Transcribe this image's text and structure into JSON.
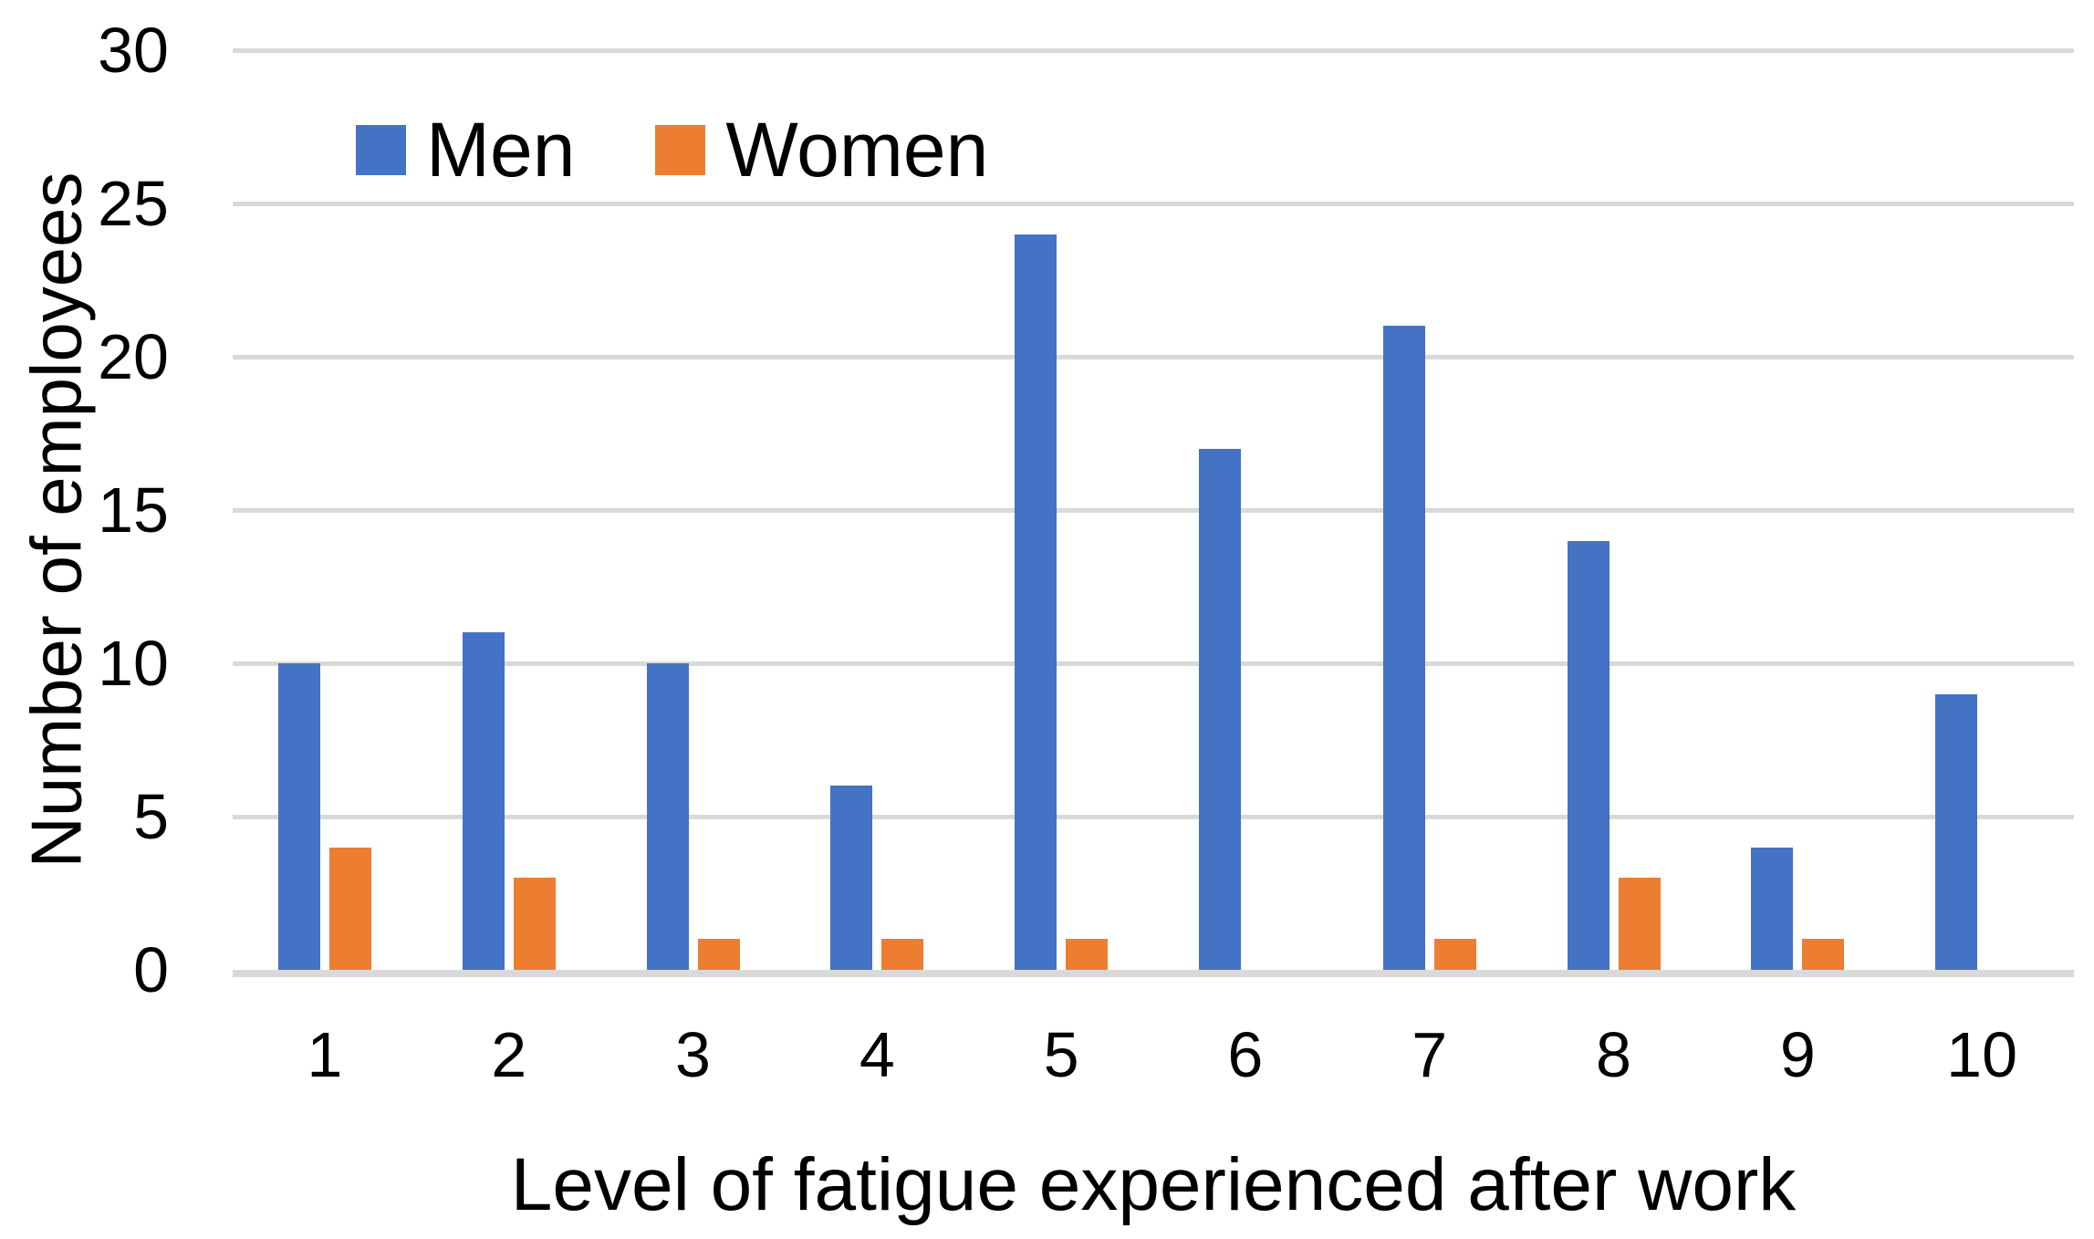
{
  "chart_data": {
    "type": "bar",
    "title": "",
    "xlabel": "Level of fatigue experienced after work",
    "ylabel": "Number of employees",
    "categories": [
      "1",
      "2",
      "3",
      "4",
      "5",
      "6",
      "7",
      "8",
      "9",
      "10"
    ],
    "series": [
      {
        "name": "Men",
        "color": "#4472C4",
        "values": [
          10,
          11,
          10,
          6,
          24,
          17,
          21,
          14,
          4,
          9
        ]
      },
      {
        "name": "Women",
        "color": "#ED7D31",
        "values": [
          4,
          3,
          1,
          1,
          1,
          0,
          1,
          3,
          1,
          0
        ]
      }
    ],
    "ylim": [
      0,
      30
    ],
    "yticks": [
      0,
      5,
      10,
      15,
      20,
      25,
      30
    ],
    "grid": "horizontal",
    "gridline_color": "#D9D9D9",
    "axis_line_color": "#D9D9D9",
    "text_color": "#000000",
    "background": "#FFFFFF",
    "legend_position": "top-left-inside"
  }
}
